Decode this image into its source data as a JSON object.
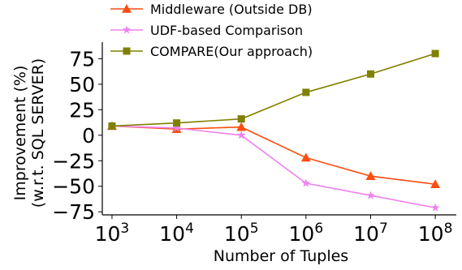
{
  "chart_data": {
    "type": "line",
    "xlabel": "Number of Tuples",
    "ylabel_lines": [
      "Improvement (%)",
      "(w.r.t. SQL SERVER)"
    ],
    "x_ticks": [
      {
        "base": "10",
        "exp": "3"
      },
      {
        "base": "10",
        "exp": "4"
      },
      {
        "base": "10",
        "exp": "5"
      },
      {
        "base": "10",
        "exp": "6"
      },
      {
        "base": "10",
        "exp": "7"
      },
      {
        "base": "10",
        "exp": "8"
      }
    ],
    "x_scale": "log",
    "x": [
      1000,
      10000,
      100000,
      1000000,
      10000000,
      100000000
    ],
    "y_ticks": [
      "75",
      "50",
      "25",
      "0",
      "−25",
      "−50",
      "−75"
    ],
    "y_tick_values": [
      75,
      50,
      25,
      0,
      -25,
      -50,
      -75
    ],
    "ylim": [
      -78,
      88
    ],
    "grid": false,
    "legend_position": "top",
    "series": [
      {
        "name": "Middleware (Outside DB)",
        "color": "#fc4e12",
        "marker": "triangle",
        "values": [
          9,
          6,
          8,
          -22,
          -40,
          -48
        ]
      },
      {
        "name": "UDF-based Comparison",
        "color": "#ee82ee",
        "marker": "star",
        "values": [
          9,
          7,
          0,
          -47,
          -59,
          -71
        ]
      },
      {
        "name": "COMPARE(Our approach)",
        "color": "#808000",
        "marker": "square",
        "values": [
          9,
          12,
          16,
          42,
          60,
          80
        ]
      }
    ]
  }
}
